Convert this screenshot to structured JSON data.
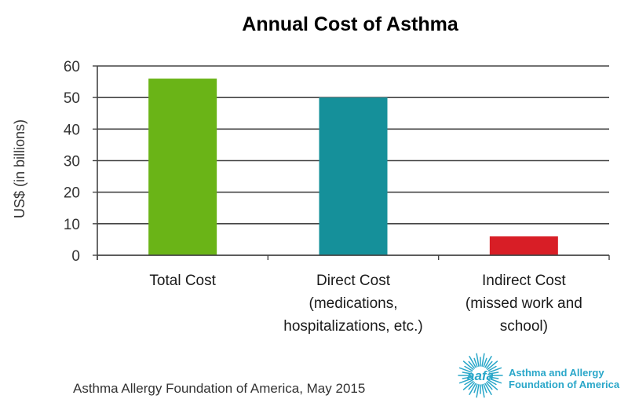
{
  "chart_data": {
    "type": "bar",
    "title": "Annual Cost of Asthma",
    "ylabel": "US$ (in billions)",
    "xlabel": "",
    "ylim": [
      0,
      60
    ],
    "yticks": [
      0,
      10,
      20,
      30,
      40,
      50,
      60
    ],
    "grid": true,
    "categories": [
      [
        "Total Cost"
      ],
      [
        "Direct Cost",
        "(medications,",
        "hospitalizations, etc.)"
      ],
      [
        "Indirect Cost",
        "(missed work and",
        "school)"
      ]
    ],
    "values": [
      56,
      50,
      6
    ],
    "colors": [
      "#6ab417",
      "#15909a",
      "#d81e26"
    ]
  },
  "source": "Asthma Allergy Foundation of America, May 2015",
  "logo": {
    "mark": "aafa",
    "line1": "Asthma and Allergy",
    "line2": "Foundation of America",
    "color": "#2aa7c9"
  }
}
